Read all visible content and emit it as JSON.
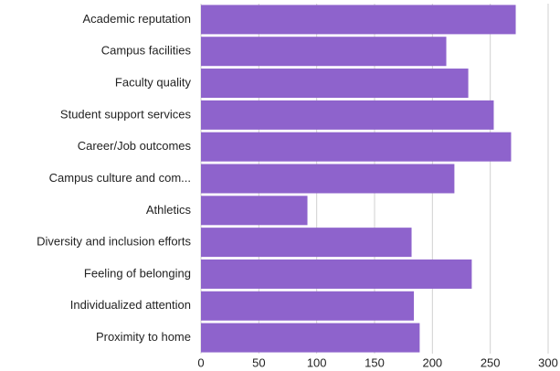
{
  "chart_data": {
    "type": "bar",
    "orientation": "horizontal",
    "categories": [
      "Academic reputation",
      "Campus facilities",
      "Faculty quality",
      "Student support services",
      "Career/Job outcomes",
      "Campus culture and com...",
      "Athletics",
      "Diversity and inclusion efforts",
      "Feeling of belonging",
      "Individualized attention",
      "Proximity to home"
    ],
    "values": [
      272,
      212,
      231,
      253,
      268,
      219,
      92,
      182,
      234,
      184,
      189
    ],
    "color": "#8e63cc",
    "xlim": [
      0,
      300
    ],
    "xticks": [
      0,
      50,
      100,
      150,
      200,
      250,
      300
    ],
    "grid": true
  }
}
